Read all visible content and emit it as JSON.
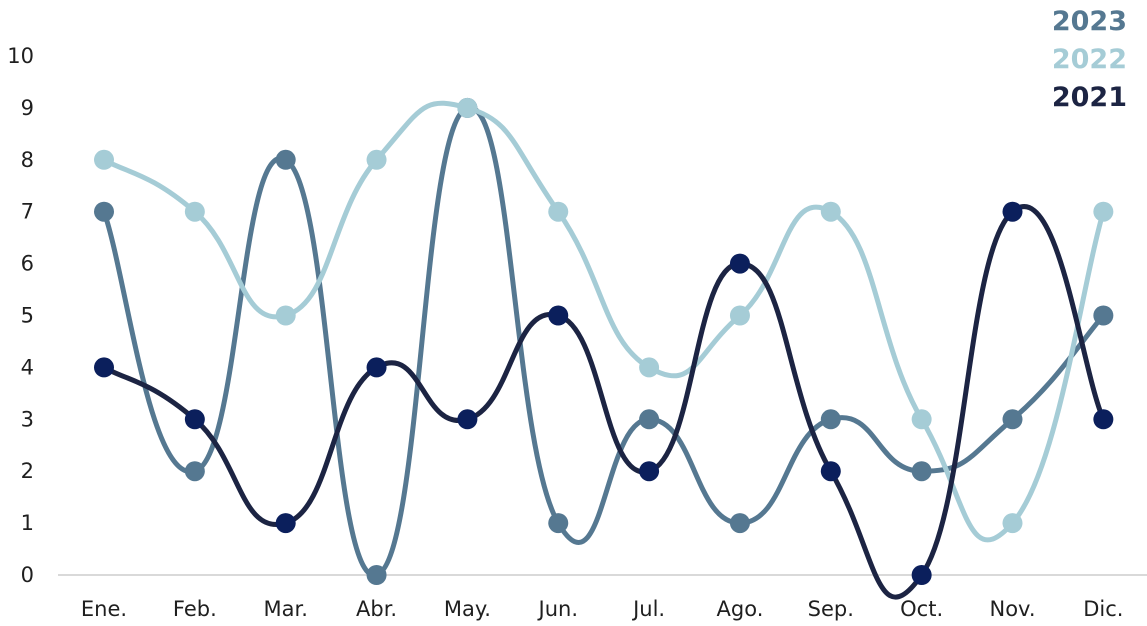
{
  "chart_data": {
    "type": "line",
    "categories": [
      "Ene.",
      "Feb.",
      "Mar.",
      "Abr.",
      "May.",
      "Jun.",
      "Jul.",
      "Ago.",
      "Sep.",
      "Oct.",
      "Nov.",
      "Dic."
    ],
    "ylim": [
      0,
      10
    ],
    "yticks": [
      "0",
      "1",
      "2",
      "3",
      "4",
      "5",
      "6",
      "7",
      "8",
      "9",
      "10"
    ],
    "grid": false,
    "smooth": true,
    "legend_position": "top-right",
    "series": [
      {
        "name": "2023",
        "color": "#557891",
        "values": [
          7,
          2,
          8,
          0,
          9,
          1,
          3,
          1,
          3,
          2,
          3,
          5
        ]
      },
      {
        "name": "2022",
        "color": "#a5ccd6",
        "values": [
          8,
          7,
          5,
          8,
          9,
          7,
          4,
          5,
          7,
          3,
          1,
          7
        ]
      },
      {
        "name": "2021",
        "color": "#1c2443",
        "marker_color": "#0b1f5c",
        "values": [
          4,
          3,
          1,
          4,
          3,
          5,
          2,
          6,
          2,
          0,
          7,
          3
        ]
      }
    ]
  }
}
